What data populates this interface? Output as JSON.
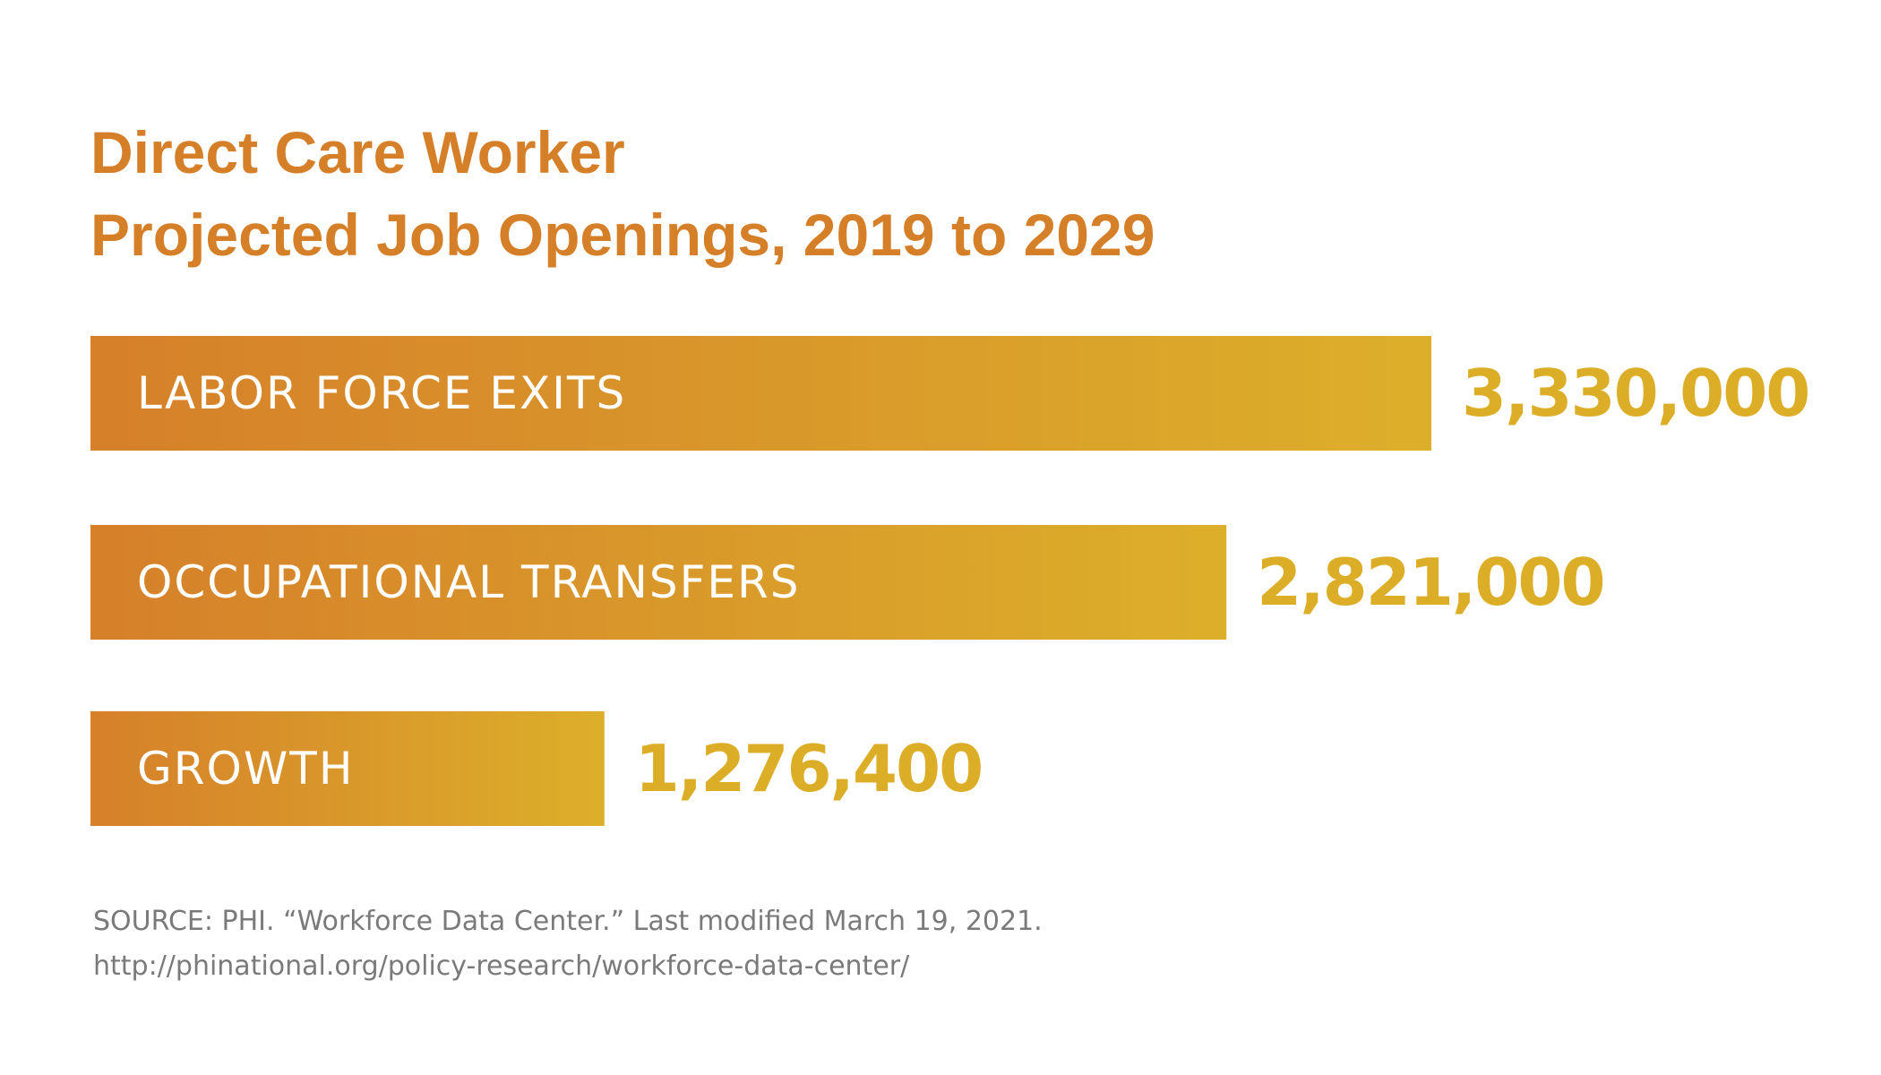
{
  "title": {
    "line1": "Direct Care Worker",
    "line2": "Projected Job Openings, 2019 to 2029"
  },
  "chart_data": {
    "type": "bar",
    "orientation": "horizontal",
    "categories": [
      "LABOR FORCE EXITS",
      "OCCUPATIONAL TRANSFERS",
      "GROWTH"
    ],
    "values": [
      3330000,
      2821000,
      1276400
    ],
    "value_labels": [
      "3,330,000",
      "2,821,000",
      "1,276,400"
    ],
    "title": "Direct Care Worker Projected Job Openings, 2019 to 2029",
    "xlabel": "",
    "ylabel": "",
    "xlim": [
      0,
      3330000
    ],
    "grid": false,
    "legend": "none"
  },
  "source": {
    "line1": "SOURCE: PHI. “Workforce Data Center.” Last modified March 19, 2021.",
    "line2": "http://phinational.org/policy-research/workforce-data-center/"
  },
  "colors": {
    "title": "#d57f28",
    "bar_gradient_start": "#d6802a",
    "bar_gradient_end": "#dcaf2a",
    "value_text": "#dcae28",
    "bar_label_text": "#ffffff",
    "source_text": "#7a7a7a"
  }
}
